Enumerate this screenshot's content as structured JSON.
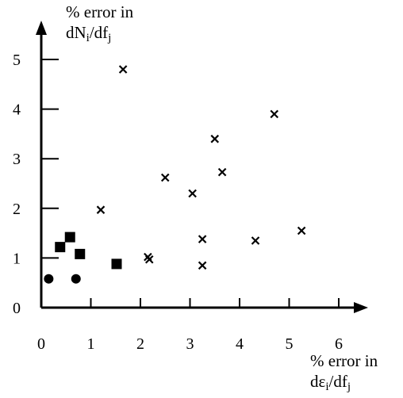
{
  "chart_data": {
    "type": "scatter",
    "title": "",
    "xlabel": {
      "line1": "% error in",
      "line2": {
        "a": "dε",
        "sub_a": "i",
        "b": "/df",
        "sub_b": "j"
      }
    },
    "ylabel": {
      "line1": "% error in",
      "line2": {
        "a": "dN",
        "sub_a": "i",
        "b": "/df",
        "sub_b": "j"
      }
    },
    "xlim": [
      0,
      6
    ],
    "ylim": [
      0,
      5
    ],
    "x_ticks": [
      0,
      1,
      2,
      3,
      4,
      5,
      6
    ],
    "y_ticks": [
      0,
      1,
      2,
      3,
      4,
      5
    ],
    "grid": false,
    "series": [
      {
        "marker": "circle",
        "points": [
          [
            0.15,
            0.58
          ],
          [
            0.7,
            0.58
          ]
        ]
      },
      {
        "marker": "square",
        "points": [
          [
            0.38,
            1.22
          ],
          [
            0.58,
            1.42
          ],
          [
            0.78,
            1.08
          ],
          [
            1.52,
            0.88
          ]
        ]
      },
      {
        "marker": "cross",
        "points": [
          [
            1.65,
            4.8
          ],
          [
            4.7,
            3.9
          ],
          [
            3.5,
            3.4
          ],
          [
            2.5,
            2.62
          ],
          [
            3.65,
            2.73
          ],
          [
            3.05,
            2.3
          ],
          [
            1.2,
            1.97
          ],
          [
            5.25,
            1.55
          ],
          [
            3.25,
            1.38
          ],
          [
            4.32,
            1.35
          ],
          [
            2.15,
            1.02
          ],
          [
            2.18,
            0.97
          ],
          [
            3.25,
            0.85
          ]
        ]
      }
    ]
  }
}
